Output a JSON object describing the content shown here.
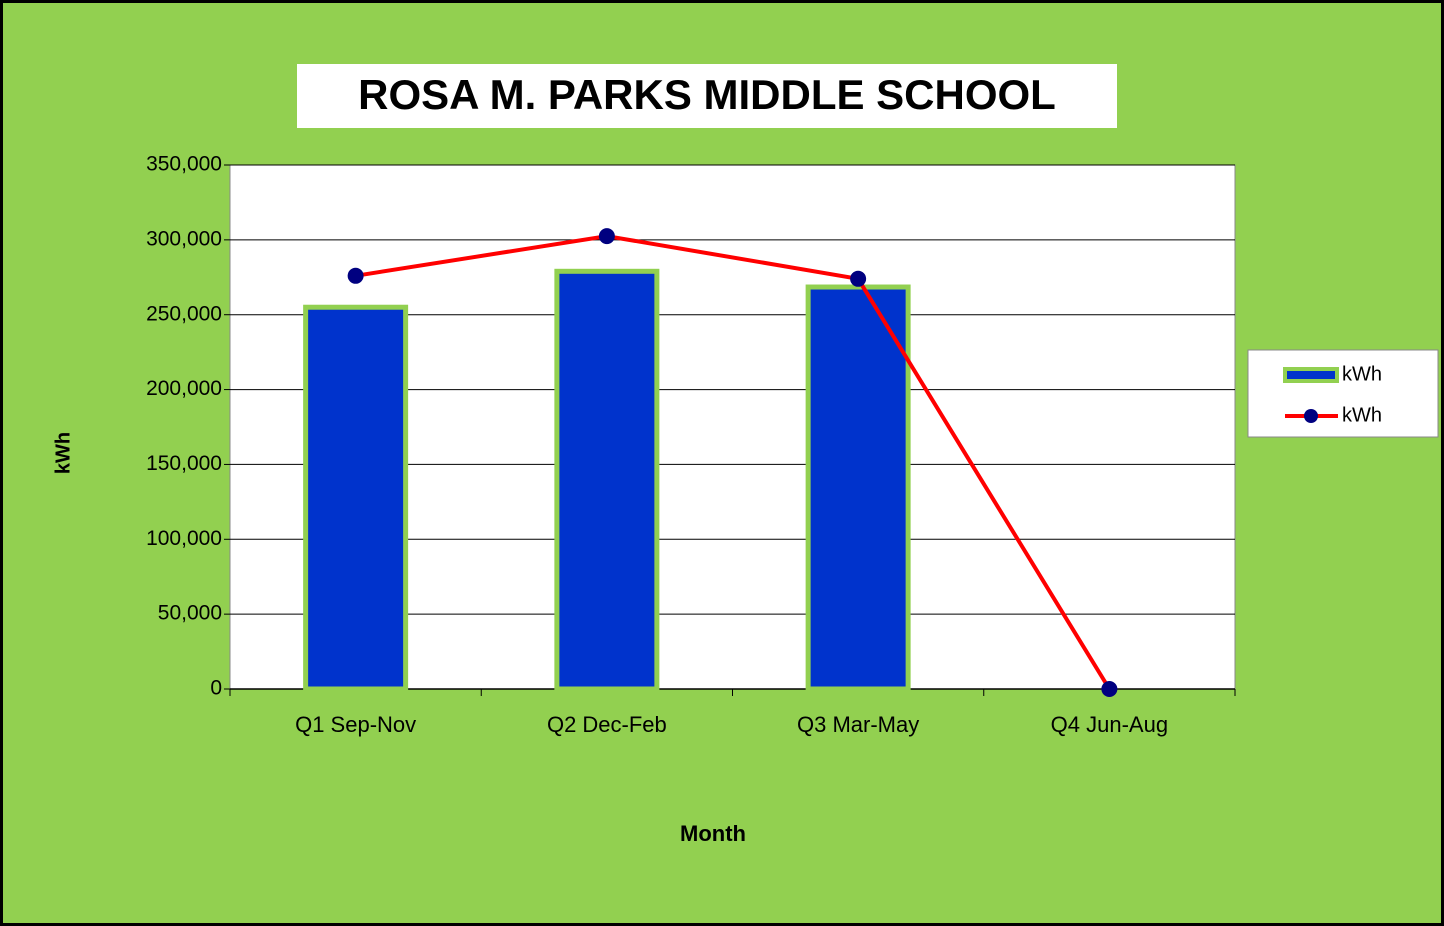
{
  "chart_data": {
    "type": "bar",
    "title": "ROSA M. PARKS MIDDLE SCHOOL",
    "x_label": "Month",
    "y_label": "kWh",
    "categories": [
      "Q1 Sep-Nov",
      "Q2 Dec-Feb",
      "Q3 Mar-May",
      "Q4 Jun-Aug"
    ],
    "series": [
      {
        "name": "kWh",
        "type": "bar",
        "color": "#0033cc",
        "edge_color": "#92d050",
        "values": [
          255000,
          279000,
          268500,
          null
        ]
      },
      {
        "name": "kWh",
        "type": "line",
        "color": "#ff0000",
        "marker_color": "#000080",
        "values": [
          276000,
          302500,
          274000,
          0
        ]
      }
    ],
    "ylim": [
      0,
      350000
    ],
    "yticks": [
      0,
      {
        "value": 50000,
        "label": "50,000"
      },
      {
        "value": 100000,
        "label": "100,000"
      },
      {
        "value": 150000,
        "label": "150,000"
      },
      {
        "value": 200000,
        "label": "200,000"
      },
      {
        "value": 250000,
        "label": "250,000"
      },
      {
        "value": 300000,
        "label": "300,000"
      },
      {
        "value": 350000,
        "label": "350,000"
      }
    ],
    "grid": true,
    "legend": "right",
    "background": "#92d050"
  }
}
